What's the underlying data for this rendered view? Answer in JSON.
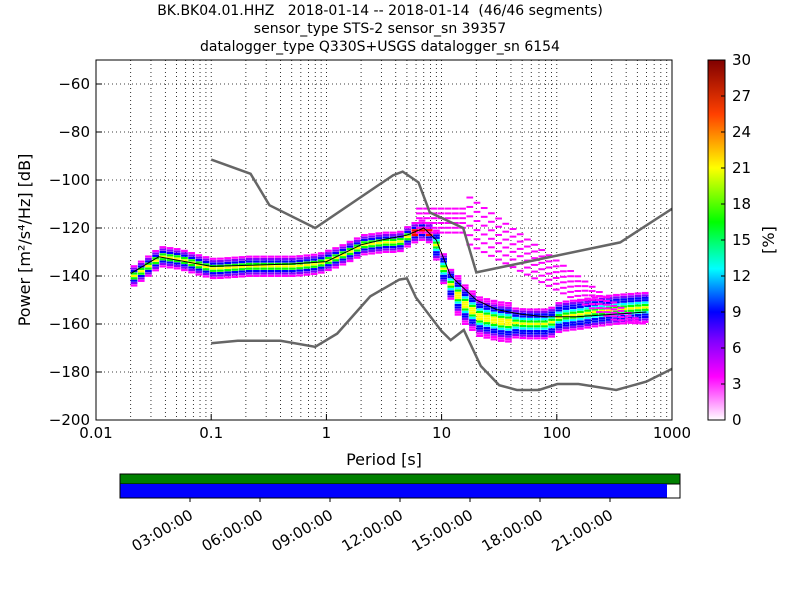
{
  "title": {
    "line1": "BK.BK04.01.HHZ   2018-01-14 -- 2018-01-14  (46/46 segments)",
    "line2": "sensor_type STS-2 sensor_sn 39357",
    "line3": "datalogger_type Q330S+USGS datalogger_sn 6154"
  },
  "colorbar": {
    "label": "[%]",
    "ticks": [
      "0",
      "3",
      "6",
      "9",
      "12",
      "15",
      "18",
      "21",
      "24",
      "27",
      "30"
    ],
    "colors": [
      "#ffffff",
      "#ff00ff",
      "#0000ff",
      "#00ffff",
      "#00ff00",
      "#ffff00",
      "#ff0000",
      "#800000"
    ]
  },
  "timeline": {
    "ticks": [
      "03:00:00",
      "06:00:00",
      "09:00:00",
      "12:00:00",
      "15:00:00",
      "18:00:00",
      "21:00:00"
    ],
    "data_color": "#008000",
    "gaps_color": "#0000ff"
  },
  "chart_data": {
    "type": "heatmap",
    "xlabel": "Period [s]",
    "ylabel": "Power [m²/s⁴/Hz] [dB]",
    "xscale": "log",
    "xlim": [
      0.01,
      1000
    ],
    "ylim": [
      -200,
      -50
    ],
    "xticks": [
      "0.01",
      "0.1",
      "1",
      "10",
      "100",
      "1000"
    ],
    "yticks": [
      "−60",
      "−80",
      "−100",
      "−120",
      "−140",
      "−160",
      "−180",
      "−200"
    ],
    "grid": true,
    "nhnm": {
      "x": [
        0.1,
        0.17,
        0.4,
        0.8,
        1.24,
        2.4,
        4.3,
        5.0,
        6.0,
        10.0,
        12.0,
        15.6,
        21.9,
        31.6,
        45.0,
        70.0,
        101,
        154,
        328,
        600,
        1000
      ],
      "y": [
        -168,
        -167,
        -167,
        -169.5,
        -164,
        -148.5,
        -141.5,
        -141,
        -149,
        -163,
        -166.7,
        -162.5,
        -177.5,
        -185.5,
        -187.5,
        -187.5,
        -185,
        -185,
        -187.5,
        -184,
        -178.7
      ]
    },
    "nlnm": {
      "x": [
        0.1,
        0.22,
        0.32,
        0.8,
        3.8,
        4.6,
        6.3,
        7.9,
        15.4,
        20.0,
        354.8,
        1000
      ],
      "y": [
        -91.5,
        -97.4,
        -110.5,
        -120,
        -98,
        -96.5,
        -101,
        -113.5,
        -120,
        -138.5,
        -126,
        -112
      ]
    },
    "mode": {
      "x": [
        0.02,
        0.025,
        0.03,
        0.035,
        0.05,
        0.08,
        0.1,
        0.2,
        0.5,
        0.8,
        1.2,
        2.0,
        3.0,
        4.0,
        5.0,
        6.0,
        7.0,
        8.0,
        9.0,
        10.0,
        12.0,
        15.0,
        20.0,
        30.0,
        50.0,
        80.0,
        100,
        150,
        200,
        300,
        600
      ],
      "y": [
        -140,
        -137,
        -134,
        -132,
        -133,
        -136,
        -137,
        -136,
        -136,
        -135,
        -132,
        -127,
        -126,
        -126,
        -123,
        -121,
        -121,
        -124,
        -131,
        -139,
        -146,
        -152,
        -157,
        -159,
        -160,
        -160,
        -157,
        -156,
        -155,
        -154,
        -153
      ]
    },
    "mean": {
      "x": [
        0.02,
        0.035,
        0.1,
        0.5,
        1.0,
        2.0,
        3.0,
        5.0,
        7.0,
        9.0,
        12.0,
        20.0,
        30.0,
        50.0,
        80.0,
        150,
        300,
        600
      ],
      "y": [
        -139,
        -132,
        -136,
        -135,
        -134,
        -127,
        -125,
        -123,
        -120,
        -125,
        -140,
        -150,
        -154,
        -156,
        -157,
        -157,
        -156,
        -155
      ]
    }
  }
}
